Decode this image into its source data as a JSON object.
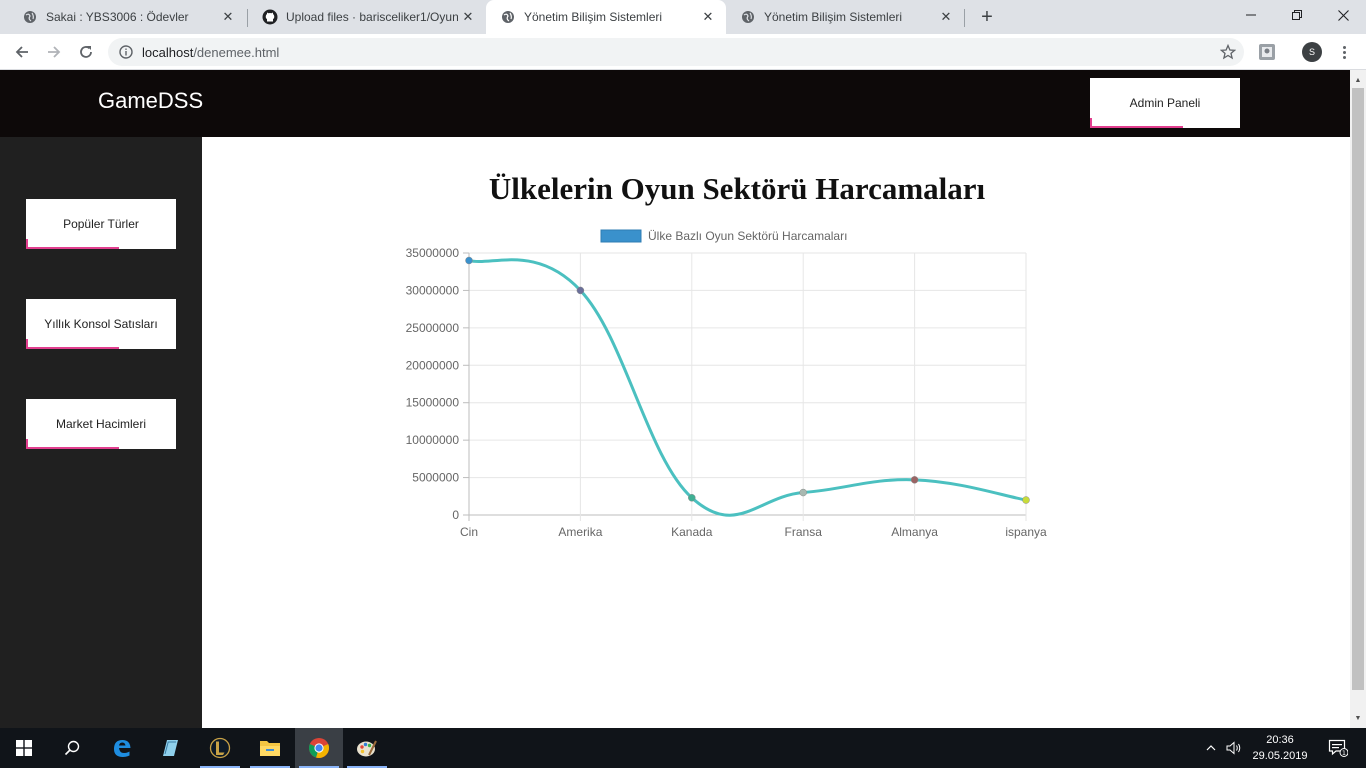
{
  "browser": {
    "tabs": [
      {
        "title": "Sakai : YBS3006 : Ödevler",
        "icon": "globe-icon",
        "active": false
      },
      {
        "title": "Upload files · barisceliker1/Oyun-",
        "icon": "github-icon",
        "active": false
      },
      {
        "title": "Yönetim Bilişim Sistemleri",
        "icon": "globe-icon",
        "active": true
      },
      {
        "title": "Yönetim Bilişim Sistemleri",
        "icon": "globe-icon",
        "active": false
      }
    ],
    "close_glyph": "✕",
    "new_tab_glyph": "+",
    "url_host": "localhost",
    "url_path": "/denemee.html",
    "profile_initial": "S"
  },
  "site": {
    "brand": "GameDSS",
    "admin_button": "Admin Paneli",
    "sidebar": [
      {
        "label": "Popüler Türler"
      },
      {
        "label": "Yıllık Konsol Satısları"
      },
      {
        "label": "Market Hacimleri"
      }
    ],
    "accent_color": "#e23f8f"
  },
  "chart_data": {
    "type": "line",
    "title": "Ülkelerin Oyun Sektörü Harcamaları",
    "categories": [
      "Cin",
      "Amerika",
      "Kanada",
      "Fransa",
      "Almanya",
      "ispanya"
    ],
    "series": [
      {
        "name": "Ülke Bazlı Oyun Sektörü Harcamaları",
        "values": [
          34000000,
          30000000,
          2300000,
          3000000,
          4700000,
          2000000
        ],
        "line_color": "#4bc0c0",
        "legend_color": "#3a91cc",
        "point_colors": [
          "#3a91cc",
          "#6a6f9a",
          "#3fb094",
          "#a8b8b0",
          "#9a6464",
          "#c8dc3a"
        ]
      }
    ],
    "yticks": [
      "0",
      "5000000",
      "10000000",
      "15000000",
      "20000000",
      "25000000",
      "30000000",
      "35000000"
    ],
    "ylim": [
      0,
      35000000
    ],
    "grid": true,
    "legend": "top"
  },
  "taskbar": {
    "items": [
      {
        "icon": "windows-start-icon"
      },
      {
        "icon": "search-icon"
      },
      {
        "icon": "edge-icon"
      },
      {
        "icon": "notepad-icon"
      },
      {
        "icon": "league-of-legends-icon"
      },
      {
        "icon": "file-explorer-icon"
      },
      {
        "icon": "chrome-icon"
      },
      {
        "icon": "paint-icon"
      }
    ],
    "time": "20:36",
    "date": "29.05.2019",
    "notification_count": "1"
  }
}
